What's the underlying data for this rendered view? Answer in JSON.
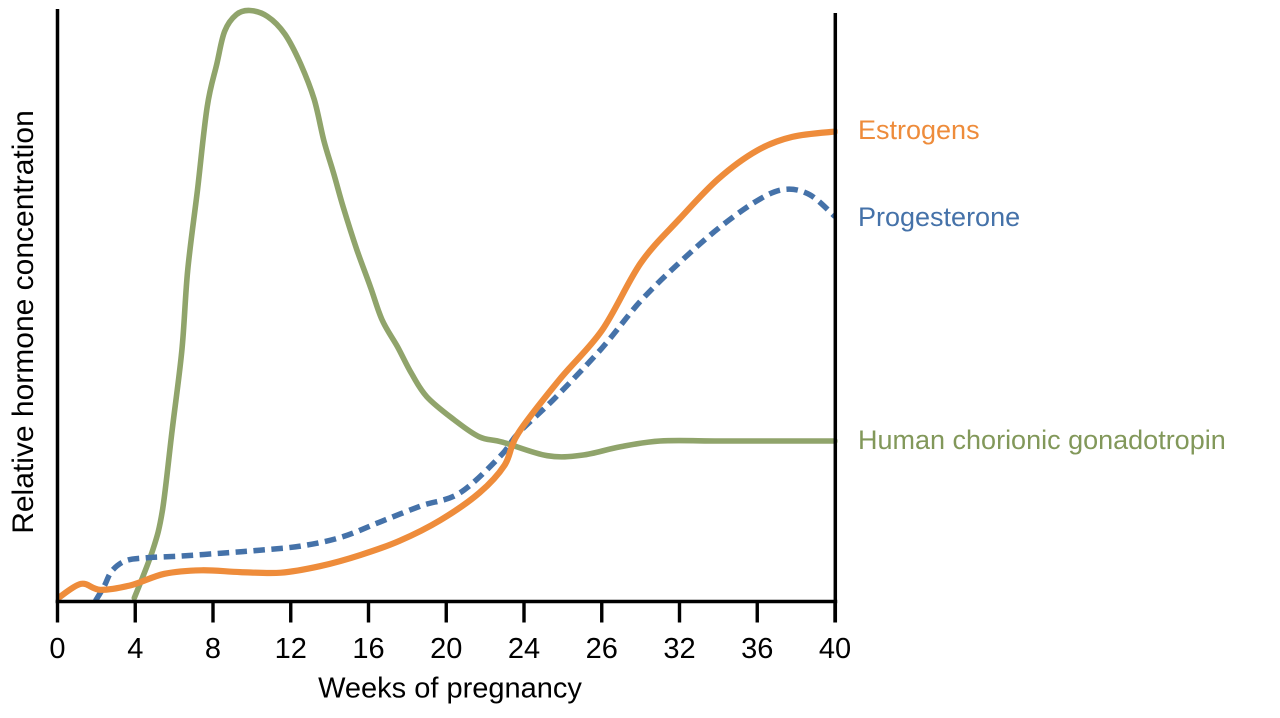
{
  "figure": {
    "x_axis_title": "Weeks of pregnancy",
    "y_axis_title": "Relative hormone concentration",
    "background": "#ffffff",
    "axis_color": "#000000"
  },
  "legend": {
    "estrogens": "Estrogens",
    "progesterone": "Progesterone",
    "hcg": "Human chorionic gonadotropin"
  },
  "colors": {
    "estrogens": "#EE8C3B",
    "progesterone": "#4572A9",
    "hcg_line": "#90A46B",
    "hcg_label": "#82985A",
    "axis": "#000000"
  },
  "chart_data": {
    "type": "line",
    "title": "",
    "xlabel": "Weeks of pregnancy",
    "ylabel": "Relative hormone concentration",
    "x_tick_labels": [
      0,
      4,
      8,
      12,
      16,
      20,
      24,
      26,
      32,
      36,
      40
    ],
    "y_axis_note": "relative concentration, unlabeled axis, values normalized 0-100",
    "ylim": [
      0,
      100
    ],
    "grid": false,
    "legend_position": "right of plot, beside curve ends",
    "series": [
      {
        "name": "Human chorionic gonadotropin",
        "key": "hcg",
        "style": "solid",
        "color": "#90A46B",
        "stroke_width": 5.6,
        "points": [
          [
            3.95,
            0.5
          ],
          [
            4.9,
            8.6
          ],
          [
            5.4,
            15.4
          ],
          [
            5.9,
            29
          ],
          [
            6.4,
            42.5
          ],
          [
            6.7,
            56
          ],
          [
            7.2,
            69.6
          ],
          [
            7.7,
            83.7
          ],
          [
            8.2,
            91
          ],
          [
            8.6,
            96.5
          ],
          [
            9.2,
            99.3
          ],
          [
            9.9,
            100
          ],
          [
            10.8,
            99
          ],
          [
            11.7,
            96
          ],
          [
            12.5,
            91
          ],
          [
            13.2,
            85
          ],
          [
            13.7,
            78
          ],
          [
            14.2,
            72.5
          ],
          [
            14.7,
            66.7
          ],
          [
            15.4,
            59.5
          ],
          [
            16.1,
            53.2
          ],
          [
            16.7,
            47.6
          ],
          [
            17.5,
            43
          ],
          [
            18.2,
            38.6
          ],
          [
            19,
            34.6
          ],
          [
            20.4,
            30.7
          ],
          [
            21.7,
            27.8
          ],
          [
            22.9,
            26.9
          ],
          [
            24.6,
            24.6
          ],
          [
            25.5,
            24.7
          ],
          [
            27.4,
            26.1
          ],
          [
            30.5,
            27.1
          ],
          [
            34,
            27.1
          ],
          [
            37,
            27.1
          ],
          [
            40,
            27.1
          ]
        ]
      },
      {
        "name": "Progesterone",
        "key": "progesterone",
        "style": "dashed",
        "color": "#4572A9",
        "stroke_width": 5.5,
        "points": [
          [
            1.95,
            0
          ],
          [
            2.4,
            2.5
          ],
          [
            2.8,
            5.1
          ],
          [
            3.5,
            6.8
          ],
          [
            4.5,
            7.3
          ],
          [
            6.3,
            7.6
          ],
          [
            8.4,
            8.1
          ],
          [
            10.4,
            8.6
          ],
          [
            12.5,
            9.3
          ],
          [
            14.6,
            10.8
          ],
          [
            16.6,
            13.4
          ],
          [
            18.7,
            16.1
          ],
          [
            20.7,
            18.3
          ],
          [
            22.8,
            24.6
          ],
          [
            23.7,
            28.4
          ],
          [
            24.8,
            34.4
          ],
          [
            26,
            42.8
          ],
          [
            29,
            50.8
          ],
          [
            32,
            57.3
          ],
          [
            34,
            63.1
          ],
          [
            36,
            67.8
          ],
          [
            37.4,
            69.7
          ],
          [
            38.7,
            68.8
          ],
          [
            40,
            65.1
          ]
        ]
      },
      {
        "name": "Estrogens",
        "key": "estrogens",
        "style": "solid",
        "color": "#EE8C3B",
        "stroke_width": 6.2,
        "points": [
          [
            0,
            0.4
          ],
          [
            1.2,
            2.9
          ],
          [
            2.2,
            1.9
          ],
          [
            3.8,
            2.7
          ],
          [
            5.5,
            4.6
          ],
          [
            7.4,
            5.2
          ],
          [
            9.4,
            4.9
          ],
          [
            11.5,
            4.8
          ],
          [
            13.5,
            5.9
          ],
          [
            15.6,
            7.8
          ],
          [
            17.6,
            10.2
          ],
          [
            19.7,
            13.7
          ],
          [
            21.7,
            18.3
          ],
          [
            23,
            23
          ],
          [
            23.7,
            28.4
          ],
          [
            24.9,
            37.4
          ],
          [
            26,
            45.8
          ],
          [
            29,
            57.2
          ],
          [
            32,
            64.7
          ],
          [
            34,
            71.5
          ],
          [
            36,
            76.3
          ],
          [
            37.8,
            78.6
          ],
          [
            40,
            79.5
          ]
        ]
      }
    ]
  }
}
